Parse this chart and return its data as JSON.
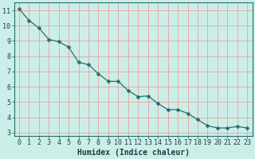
{
  "x": [
    0,
    1,
    2,
    3,
    4,
    5,
    6,
    7,
    8,
    9,
    10,
    11,
    12,
    13,
    14,
    15,
    16,
    17,
    18,
    19,
    20,
    21,
    22,
    23
  ],
  "y": [
    11.1,
    10.35,
    9.85,
    9.1,
    8.95,
    8.6,
    7.6,
    7.45,
    6.85,
    6.35,
    6.35,
    5.75,
    5.35,
    5.4,
    4.9,
    4.5,
    4.5,
    4.25,
    3.85,
    3.45,
    3.3,
    3.3,
    3.4,
    3.3
  ],
  "line_color": "#2a6e6e",
  "marker": "D",
  "marker_size": 2.5,
  "bg_color": "#cceee8",
  "plot_bg_color": "#cceee8",
  "grid_color_major": "#e8a0a0",
  "grid_color_minor": "#e8c0c0",
  "axis_color": "#2a6e6e",
  "xlabel": "Humidex (Indice chaleur)",
  "xlim": [
    -0.5,
    23.5
  ],
  "ylim": [
    2.8,
    11.5
  ],
  "yticks": [
    3,
    4,
    5,
    6,
    7,
    8,
    9,
    10,
    11
  ],
  "xticks": [
    0,
    1,
    2,
    3,
    4,
    5,
    6,
    7,
    8,
    9,
    10,
    11,
    12,
    13,
    14,
    15,
    16,
    17,
    18,
    19,
    20,
    21,
    22,
    23
  ],
  "font_color": "#1a4040",
  "label_fontsize": 7.0,
  "tick_fontsize": 6.0
}
